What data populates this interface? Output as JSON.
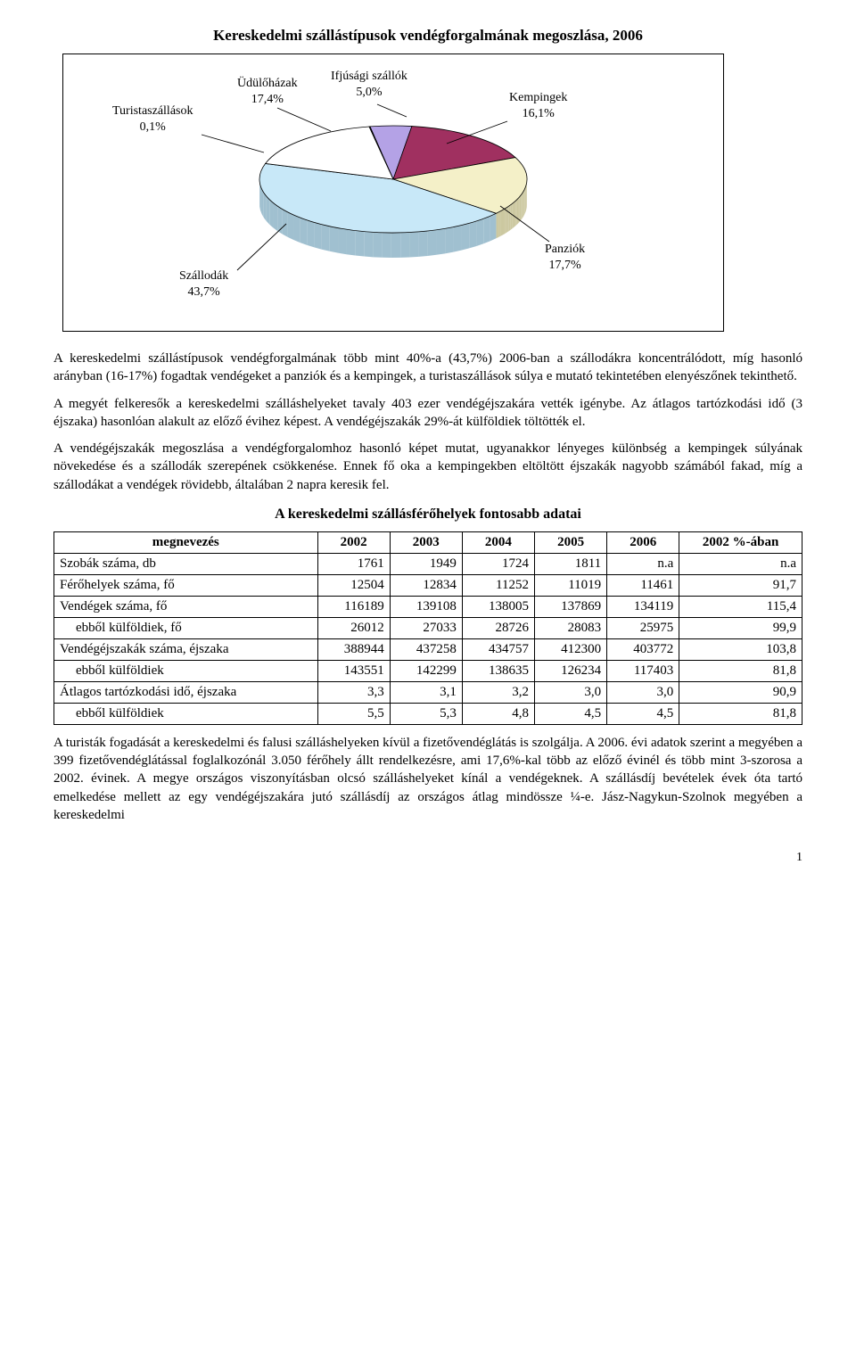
{
  "chart": {
    "title": "Kereskedelmi szállástípusok vendégforgalmának megoszlása, 2006",
    "type": "pie",
    "background_color": "#ffffff",
    "border_color": "#000000",
    "label_fontsize": 14,
    "side_color": "#a0a0a0",
    "slices": [
      {
        "name": "Ifjúsági szállók",
        "pct": "5,0%",
        "value": 5.0,
        "color": "#b4a2e6"
      },
      {
        "name": "Kempingek",
        "pct": "16,1%",
        "value": 16.1,
        "color": "#a03060"
      },
      {
        "name": "Panziók",
        "pct": "17,7%",
        "value": 17.7,
        "color": "#f4f0c8"
      },
      {
        "name": "Szállodák",
        "pct": "43,7%",
        "value": 43.7,
        "color": "#c8e8f8"
      },
      {
        "name": "Üdülőházak",
        "pct": "17,4%",
        "value": 17.4,
        "color": "#ffffff"
      },
      {
        "name": "Turistaszállások",
        "pct": "0,1%",
        "value": 0.1,
        "color": "#888888"
      }
    ]
  },
  "paragraphs": {
    "p1": "A kereskedelmi szállástípusok vendégforgalmának több mint 40%-a (43,7%) 2006-ban a szállodákra koncentrálódott, míg hasonló arányban (16-17%) fogadtak vendégeket a panziók és a kempingek, a turistaszállások súlya e mutató tekintetében elenyészőnek tekinthető.",
    "p2": "A megyét felkeresők a kereskedelmi szálláshelyeket tavaly 403 ezer vendégéjszakára vették igénybe. Az átlagos tartózkodási idő (3 éjszaka) hasonlóan alakult az előző évihez képest. A vendégéjszakák 29%-át külföldiek töltötték el.",
    "p3": "A vendégéjszakák megoszlása a vendégforgalomhoz hasonló képet mutat, ugyanakkor lényeges különbség a kempingek súlyának növekedése és a szállodák szerepének csökkenése. Ennek fő oka a kempingekben eltöltött éjszakák nagyobb számából fakad, míg a szállodákat a vendégek rövidebb, általában 2 napra keresik fel.",
    "p4": "A turisták fogadását a kereskedelmi és falusi szálláshelyeken kívül a fizetővendéglátás is szolgálja. A 2006. évi adatok szerint a megyében a 399 fizetővendéglátással foglalkozónál 3.050 férőhely állt rendelkezésre, ami 17,6%-kal több az előző évinél és több mint 3-szorosa a 2002. évinek. A megye országos viszonyításban olcsó szálláshelyeket kínál a vendégeknek. A szállásdíj bevételek évek óta tartó emelkedése mellett az egy vendégéjszakára jutó szállásdíj az országos átlag mindössze ¼-e. Jász-Nagykun-Szolnok megyében a kereskedelmi"
  },
  "table": {
    "title": "A kereskedelmi szállásférőhelyek fontosabb adatai",
    "columns": [
      "megnevezés",
      "2002",
      "2003",
      "2004",
      "2005",
      "2006",
      "2002 %-ában"
    ],
    "col_align": [
      "left",
      "right",
      "right",
      "right",
      "right",
      "right",
      "right"
    ],
    "rows": [
      {
        "indent": false,
        "cells": [
          "Szobák száma, db",
          "1761",
          "1949",
          "1724",
          "1811",
          "n.a",
          "n.a"
        ]
      },
      {
        "indent": false,
        "cells": [
          "Férőhelyek száma, fő",
          "12504",
          "12834",
          "11252",
          "11019",
          "11461",
          "91,7"
        ]
      },
      {
        "indent": false,
        "cells": [
          "Vendégek száma, fő",
          "116189",
          "139108",
          "138005",
          "137869",
          "134119",
          "115,4"
        ]
      },
      {
        "indent": true,
        "cells": [
          "ebből külföldiek, fő",
          "26012",
          "27033",
          "28726",
          "28083",
          "25975",
          "99,9"
        ]
      },
      {
        "indent": false,
        "cells": [
          "Vendégéjszakák száma, éjszaka",
          "388944",
          "437258",
          "434757",
          "412300",
          "403772",
          "103,8"
        ]
      },
      {
        "indent": true,
        "cells": [
          "ebből külföldiek",
          "143551",
          "142299",
          "138635",
          "126234",
          "117403",
          "81,8"
        ]
      },
      {
        "indent": false,
        "cells": [
          "Átlagos tartózkodási idő, éjszaka",
          "3,3",
          "3,1",
          "3,2",
          "3,0",
          "3,0",
          "90,9"
        ]
      },
      {
        "indent": true,
        "cells": [
          "ebből külföldiek",
          "5,5",
          "5,3",
          "4,8",
          "4,5",
          "4,5",
          "81,8"
        ]
      }
    ]
  },
  "page_number": "1"
}
